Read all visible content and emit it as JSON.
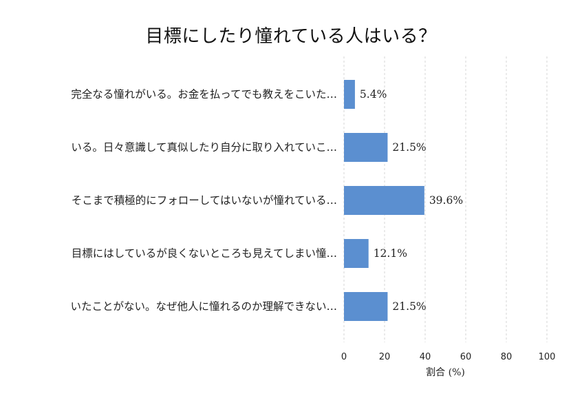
{
  "chart_data": {
    "type": "bar",
    "orientation": "horizontal",
    "title": "目標にしたり憧れている人はいる？",
    "categories": [
      "完全なる憧れがいる。お金を払ってでも教えをこいた…",
      "いる。日々意識して真似したり自分に取り入れていこ…",
      "そこまで積極的にフォローしてはいないが憧れている…",
      "目標にはしているが良くないところも見えてしまい憧…",
      "いたことがない。なぜ他人に憧れるのか理解できない…"
    ],
    "values": [
      5.4,
      21.5,
      39.6,
      12.1,
      21.5
    ],
    "value_labels": [
      "5.4%",
      "21.5%",
      "39.6%",
      "12.1%",
      "21.5%"
    ],
    "xlabel": "割合 (%)",
    "ylabel": "",
    "xlim": [
      0,
      100
    ],
    "xticks": [
      "0",
      "20",
      "40",
      "60",
      "80",
      "100"
    ],
    "grid": true,
    "bar_color": "#5b8fd0",
    "grid_color": "#cccccc"
  }
}
